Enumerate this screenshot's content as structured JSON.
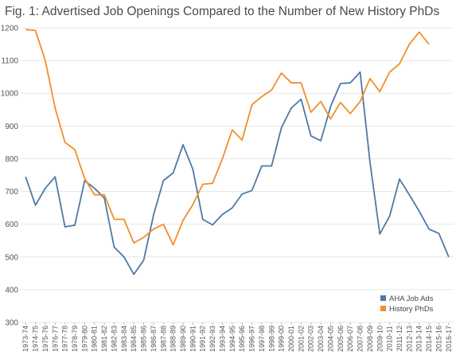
{
  "chart_data": {
    "type": "line",
    "title": "Fig. 1: Advertised Job Openings Compared to the Number of New History PhDs",
    "xlabel": "",
    "ylabel": "",
    "ylim": [
      300,
      1200
    ],
    "yticks": [
      300,
      400,
      500,
      600,
      700,
      800,
      900,
      1000,
      1100,
      1200
    ],
    "grid": true,
    "legend_position": "bottom-right",
    "categories": [
      "1973-74",
      "1974-75",
      "1975-76",
      "1976-77",
      "1977-78",
      "1978-79",
      "1979-80",
      "1980-81",
      "1981-82",
      "1982-83",
      "1983-84",
      "1984-85",
      "1985-86",
      "1986-87",
      "1987-88",
      "1988-89",
      "1989-90",
      "1990-91",
      "1991-92",
      "1992-93",
      "1993-94",
      "1994-95",
      "1995-96",
      "1996-97",
      "1997-98",
      "1998-99",
      "1999-00",
      "2000-01",
      "2001-02",
      "2002-03",
      "2003-04",
      "2004-05",
      "2005-06",
      "2006-07",
      "2007-08",
      "2008-09",
      "2009-10",
      "2010-11",
      "2011-12",
      "2012-13",
      "2013-14",
      "2014-15",
      "2015-16",
      "2016-17"
    ],
    "series": [
      {
        "name": "AHA Job Ads",
        "color": "#4e79a7",
        "values": [
          745,
          658,
          710,
          745,
          592,
          597,
          733,
          710,
          680,
          530,
          500,
          447,
          490,
          628,
          733,
          757,
          843,
          768,
          615,
          598,
          630,
          650,
          692,
          703,
          778,
          778,
          895,
          955,
          982,
          870,
          855,
          960,
          1030,
          1032,
          1065,
          790,
          570,
          625,
          738,
          690,
          640,
          585,
          572,
          500
        ]
      },
      {
        "name": "History PhDs",
        "color": "#f28e2b",
        "values": [
          1195,
          1192,
          1100,
          955,
          850,
          828,
          740,
          690,
          690,
          615,
          615,
          543,
          560,
          585,
          600,
          537,
          612,
          660,
          722,
          725,
          800,
          888,
          857,
          965,
          990,
          1010,
          1062,
          1032,
          1032,
          942,
          975,
          922,
          972,
          938,
          975,
          1045,
          1005,
          1065,
          1090,
          1150,
          1187,
          1150,
          null,
          null
        ]
      }
    ]
  }
}
